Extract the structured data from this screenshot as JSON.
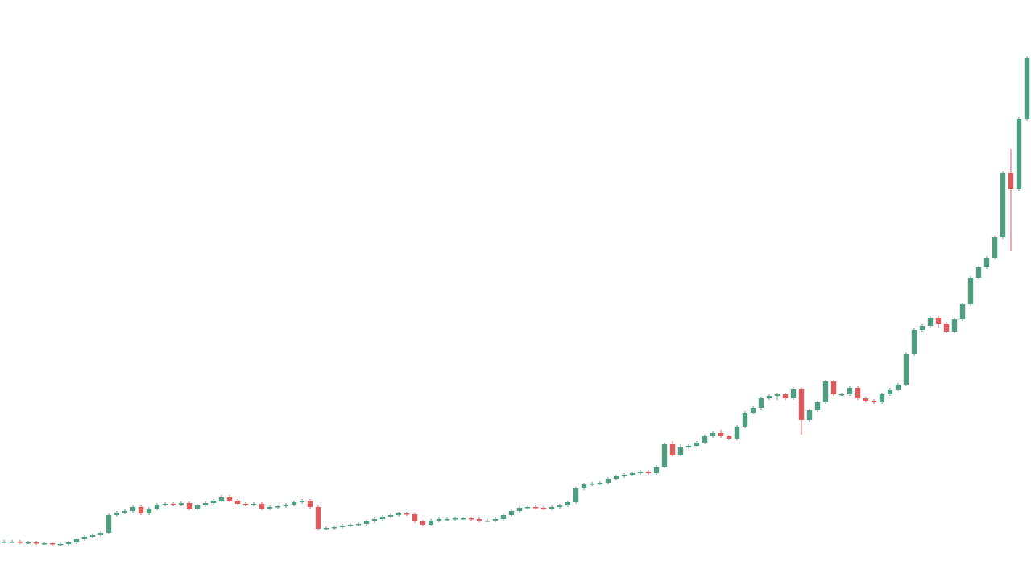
{
  "chart_data": {
    "type": "candlestick",
    "up_color": "#4f9e80",
    "down_color": "#de5b5d",
    "ylim": [
      0,
      712
    ],
    "open": [
      39,
      39,
      39,
      38,
      38,
      37,
      37,
      36,
      36,
      38,
      42,
      45,
      47,
      50,
      72,
      75,
      77,
      82,
      74,
      80,
      85,
      86,
      85,
      87,
      80,
      84,
      87,
      90,
      95,
      90,
      86,
      85,
      86,
      80,
      82,
      83,
      85,
      88,
      90,
      82,
      55,
      56,
      57,
      59,
      60,
      61,
      64,
      67,
      70,
      72,
      74,
      73,
      64,
      60,
      65,
      67,
      67,
      68,
      68,
      67,
      65,
      65,
      67,
      72,
      77,
      81,
      82,
      81,
      80,
      82,
      84,
      88,
      105,
      110,
      111,
      112,
      117,
      120,
      122,
      124,
      126,
      124,
      132,
      160,
      147,
      156,
      158,
      162,
      170,
      174,
      170,
      167,
      182,
      199,
      205,
      217,
      220,
      222,
      217,
      229,
      190,
      202,
      212,
      238,
      222,
      222,
      230,
      217,
      214,
      212,
      222,
      228,
      234,
      272,
      302,
      307,
      317,
      310,
      300,
      315,
      334,
      367,
      380,
      392,
      417,
      497,
      477,
      564
    ],
    "high": [
      41,
      41,
      41,
      40,
      40,
      39,
      39,
      38,
      40,
      44,
      47,
      49,
      52,
      74,
      77,
      79,
      84,
      84,
      82,
      87,
      88,
      88,
      89,
      89,
      86,
      89,
      92,
      97,
      97,
      92,
      88,
      88,
      88,
      84,
      85,
      87,
      90,
      92,
      92,
      84,
      58,
      59,
      61,
      62,
      63,
      66,
      69,
      72,
      74,
      76,
      76,
      75,
      66,
      67,
      69,
      69,
      70,
      70,
      70,
      69,
      67,
      69,
      74,
      79,
      83,
      84,
      84,
      83,
      84,
      86,
      90,
      107,
      112,
      113,
      114,
      119,
      122,
      124,
      126,
      128,
      128,
      134,
      162,
      164,
      160,
      160,
      164,
      172,
      176,
      178,
      172,
      184,
      201,
      207,
      219,
      222,
      224,
      224,
      231,
      231,
      204,
      214,
      240,
      240,
      224,
      232,
      232,
      219,
      216,
      224,
      230,
      236,
      274,
      304,
      309,
      319,
      319,
      312,
      317,
      336,
      369,
      382,
      394,
      419,
      499,
      527,
      566,
      642
    ],
    "low": [
      37,
      37,
      36,
      36,
      35,
      35,
      34,
      34,
      34,
      36,
      40,
      43,
      45,
      48,
      70,
      73,
      75,
      72,
      72,
      78,
      83,
      83,
      83,
      78,
      78,
      82,
      85,
      88,
      88,
      84,
      83,
      83,
      78,
      78,
      80,
      81,
      83,
      86,
      80,
      53,
      53,
      54,
      55,
      57,
      58,
      59,
      62,
      65,
      68,
      70,
      71,
      62,
      58,
      58,
      63,
      65,
      65,
      66,
      65,
      63,
      63,
      63,
      65,
      70,
      75,
      79,
      79,
      78,
      78,
      80,
      82,
      86,
      103,
      108,
      109,
      110,
      115,
      118,
      120,
      122,
      122,
      122,
      130,
      145,
      145,
      154,
      156,
      160,
      168,
      168,
      165,
      165,
      180,
      197,
      203,
      215,
      215,
      215,
      215,
      172,
      188,
      200,
      210,
      220,
      220,
      220,
      215,
      212,
      210,
      210,
      220,
      226,
      232,
      270,
      300,
      305,
      305,
      298,
      298,
      313,
      332,
      365,
      378,
      390,
      415,
      400,
      475,
      562
    ],
    "close": [
      39,
      39,
      38,
      38,
      37,
      37,
      36,
      36,
      38,
      42,
      45,
      47,
      50,
      72,
      75,
      77,
      82,
      74,
      80,
      85,
      86,
      85,
      87,
      80,
      84,
      87,
      90,
      95,
      90,
      86,
      85,
      86,
      80,
      82,
      83,
      85,
      88,
      90,
      82,
      55,
      56,
      57,
      59,
      60,
      61,
      64,
      67,
      70,
      72,
      74,
      73,
      64,
      60,
      65,
      67,
      67,
      68,
      68,
      67,
      65,
      65,
      67,
      72,
      77,
      81,
      82,
      81,
      80,
      82,
      84,
      88,
      105,
      110,
      111,
      112,
      117,
      120,
      122,
      124,
      126,
      124,
      132,
      160,
      147,
      156,
      158,
      162,
      170,
      174,
      170,
      167,
      182,
      199,
      205,
      217,
      220,
      222,
      217,
      229,
      190,
      202,
      212,
      238,
      222,
      222,
      230,
      217,
      214,
      212,
      222,
      228,
      234,
      272,
      302,
      307,
      317,
      310,
      300,
      315,
      334,
      367,
      380,
      392,
      417,
      497,
      477,
      564,
      640
    ]
  }
}
